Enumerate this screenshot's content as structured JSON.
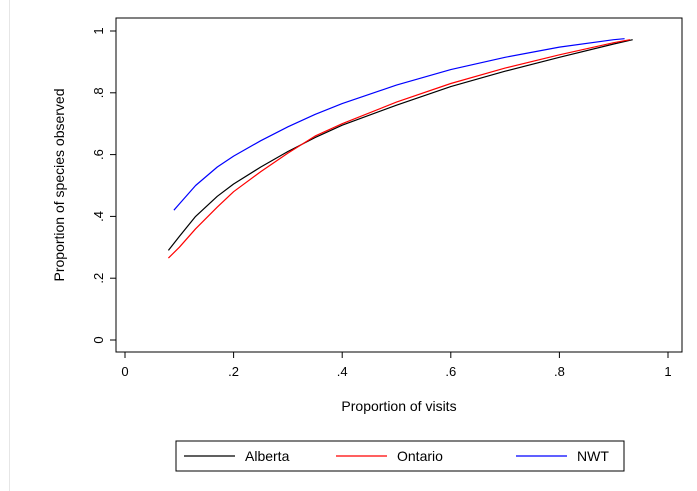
{
  "chart_data": {
    "type": "line",
    "title": "",
    "xlabel": "Proportion of visits",
    "ylabel": "Proportion of species observed",
    "xlim": [
      0,
      1
    ],
    "ylim": [
      0,
      1
    ],
    "x_ticks": [
      {
        "value": 0,
        "label": "0"
      },
      {
        "value": 0.2,
        "label": ".2"
      },
      {
        "value": 0.4,
        "label": ".4"
      },
      {
        "value": 0.6,
        "label": ".6"
      },
      {
        "value": 0.8,
        "label": ".8"
      },
      {
        "value": 1,
        "label": "1"
      }
    ],
    "y_ticks": [
      {
        "value": 0,
        "label": "0"
      },
      {
        "value": 0.2,
        "label": ".2"
      },
      {
        "value": 0.4,
        "label": ".4"
      },
      {
        "value": 0.6,
        "label": ".6"
      },
      {
        "value": 0.8,
        "label": ".8"
      },
      {
        "value": 1,
        "label": "1"
      }
    ],
    "grid": false,
    "legend_position": "bottom",
    "series": [
      {
        "name": "Alberta",
        "color": "#000000",
        "x": [
          0.08,
          0.1,
          0.13,
          0.17,
          0.2,
          0.25,
          0.3,
          0.35,
          0.4,
          0.5,
          0.6,
          0.7,
          0.8,
          0.9,
          0.935
        ],
        "y": [
          0.29,
          0.335,
          0.4,
          0.465,
          0.505,
          0.56,
          0.61,
          0.655,
          0.695,
          0.76,
          0.82,
          0.87,
          0.915,
          0.958,
          0.972
        ]
      },
      {
        "name": "Ontario",
        "color": "#ff0000",
        "x": [
          0.08,
          0.1,
          0.13,
          0.17,
          0.2,
          0.25,
          0.3,
          0.35,
          0.4,
          0.5,
          0.6,
          0.7,
          0.8,
          0.9,
          0.93
        ],
        "y": [
          0.265,
          0.3,
          0.36,
          0.43,
          0.48,
          0.545,
          0.605,
          0.66,
          0.7,
          0.77,
          0.83,
          0.88,
          0.923,
          0.962,
          0.972
        ]
      },
      {
        "name": "NWT",
        "color": "#0000ff",
        "x": [
          0.09,
          0.1,
          0.13,
          0.17,
          0.2,
          0.25,
          0.3,
          0.35,
          0.4,
          0.5,
          0.6,
          0.7,
          0.8,
          0.9,
          0.92
        ],
        "y": [
          0.42,
          0.44,
          0.5,
          0.56,
          0.595,
          0.645,
          0.69,
          0.73,
          0.765,
          0.825,
          0.875,
          0.915,
          0.948,
          0.972,
          0.975
        ]
      }
    ]
  }
}
